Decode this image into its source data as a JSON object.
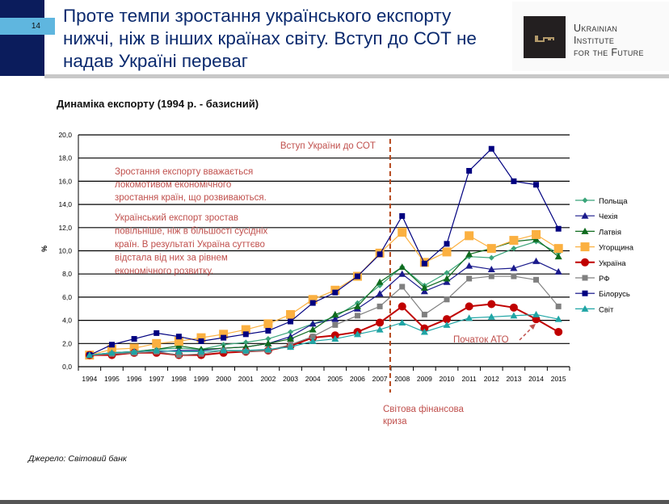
{
  "slide": {
    "page_number": "14",
    "title": "Проте темпи зростання українського експорту нижчі, ніж в інших країнах світу. Вступ до СОТ не надав Україні переваг",
    "logo_text": [
      "Ukrainian",
      "Institute",
      "for the Future"
    ],
    "source": "Джерело: Світовий банк"
  },
  "chart_data": {
    "type": "line",
    "title": "Динаміка експорту (1994 р. - базисний)",
    "xlabel": "",
    "ylabel": "%",
    "ylim": [
      0,
      20
    ],
    "yticks": [
      "0,0",
      "2,0",
      "4,0",
      "6,0",
      "8,0",
      "10,0",
      "12,0",
      "14,0",
      "16,0",
      "18,0",
      "20,0"
    ],
    "grid": true,
    "legend": "right",
    "x": [
      "1994",
      "1995",
      "1996",
      "1997",
      "1998",
      "1999",
      "2000",
      "2001",
      "2002",
      "2003",
      "2004",
      "2005",
      "2006",
      "2007",
      "2008",
      "2009",
      "2010",
      "2011",
      "2012",
      "2013",
      "2014",
      "2015"
    ],
    "series": [
      {
        "name": "Польща",
        "color": "#3aa57a",
        "marker": "diamond",
        "values": [
          1.0,
          1.2,
          1.3,
          1.5,
          1.6,
          1.5,
          1.9,
          2.1,
          2.4,
          3.0,
          3.7,
          4.3,
          5.5,
          7.0,
          8.6,
          7.0,
          8.1,
          9.5,
          9.4,
          10.2,
          10.8,
          9.8
        ]
      },
      {
        "name": "Чехія",
        "color": "#1a1a8c",
        "marker": "triangle",
        "values": [
          1.0,
          1.1,
          1.2,
          1.3,
          1.4,
          1.4,
          1.6,
          1.7,
          2.0,
          2.6,
          3.7,
          4.1,
          5.0,
          6.3,
          8.0,
          6.5,
          7.3,
          8.7,
          8.4,
          8.5,
          9.1,
          8.2
        ]
      },
      {
        "name": "Латвія",
        "color": "#0f6b1e",
        "marker": "triangle",
        "values": [
          1.0,
          1.2,
          1.3,
          1.5,
          1.8,
          1.5,
          1.6,
          1.7,
          2.0,
          2.4,
          3.2,
          4.5,
          5.2,
          7.3,
          8.6,
          6.8,
          7.6,
          9.7,
          10.2,
          10.8,
          11.0,
          9.5
        ]
      },
      {
        "name": "Угорщина",
        "color": "#fbb040",
        "marker": "square-large",
        "values": [
          1.0,
          1.5,
          1.6,
          2.0,
          2.2,
          2.5,
          2.8,
          3.2,
          3.7,
          4.5,
          5.8,
          6.6,
          7.8,
          9.8,
          11.6,
          9.0,
          9.9,
          11.3,
          10.2,
          10.9,
          11.4,
          10.2
        ]
      },
      {
        "name": "Україна",
        "color": "#c00000",
        "marker": "circle",
        "values": [
          1.0,
          1.0,
          1.2,
          1.2,
          1.0,
          1.0,
          1.2,
          1.3,
          1.4,
          1.8,
          2.5,
          2.7,
          3.0,
          3.8,
          5.2,
          3.3,
          4.1,
          5.2,
          5.4,
          5.1,
          4.1,
          3.0
        ]
      },
      {
        "name": "РФ",
        "color": "#808080",
        "marker": "square",
        "values": [
          1.0,
          1.1,
          1.2,
          1.3,
          1.0,
          1.1,
          1.4,
          1.3,
          1.4,
          1.9,
          2.6,
          3.6,
          4.4,
          5.2,
          6.9,
          4.5,
          5.8,
          7.6,
          7.8,
          7.8,
          7.5,
          5.2
        ]
      },
      {
        "name": "Білорусь",
        "color": "#000080",
        "marker": "square",
        "values": [
          1.0,
          1.9,
          2.4,
          2.9,
          2.6,
          2.2,
          2.5,
          2.8,
          3.1,
          3.9,
          5.5,
          6.4,
          7.8,
          9.7,
          13.0,
          8.9,
          10.6,
          16.9,
          18.8,
          16.0,
          15.7,
          11.9
        ]
      },
      {
        "name": "Світ",
        "color": "#1fa5a5",
        "marker": "triangle",
        "values": [
          1.0,
          1.2,
          1.3,
          1.4,
          1.3,
          1.3,
          1.4,
          1.4,
          1.5,
          1.7,
          2.2,
          2.4,
          2.8,
          3.2,
          3.8,
          3.0,
          3.6,
          4.2,
          4.3,
          4.4,
          4.5,
          4.1
        ]
      }
    ],
    "annotations": {
      "wto": "Вступ України до СОТ",
      "text1": [
        "Зростання експорту вважається",
        "локомотивом економічного",
        "зростання країн, що розвиваються."
      ],
      "text2": [
        "Український експорт зростав",
        "повільніше, ніж в більшості сусідніх",
        "країн. В результаті Україна суттєво",
        "відстала від них за рівнем",
        "економічного розвитку."
      ],
      "crisis": [
        "Світова фінансова",
        "криза"
      ],
      "ato": "Початок АТО"
    },
    "annotation_color": "#c0504d"
  }
}
